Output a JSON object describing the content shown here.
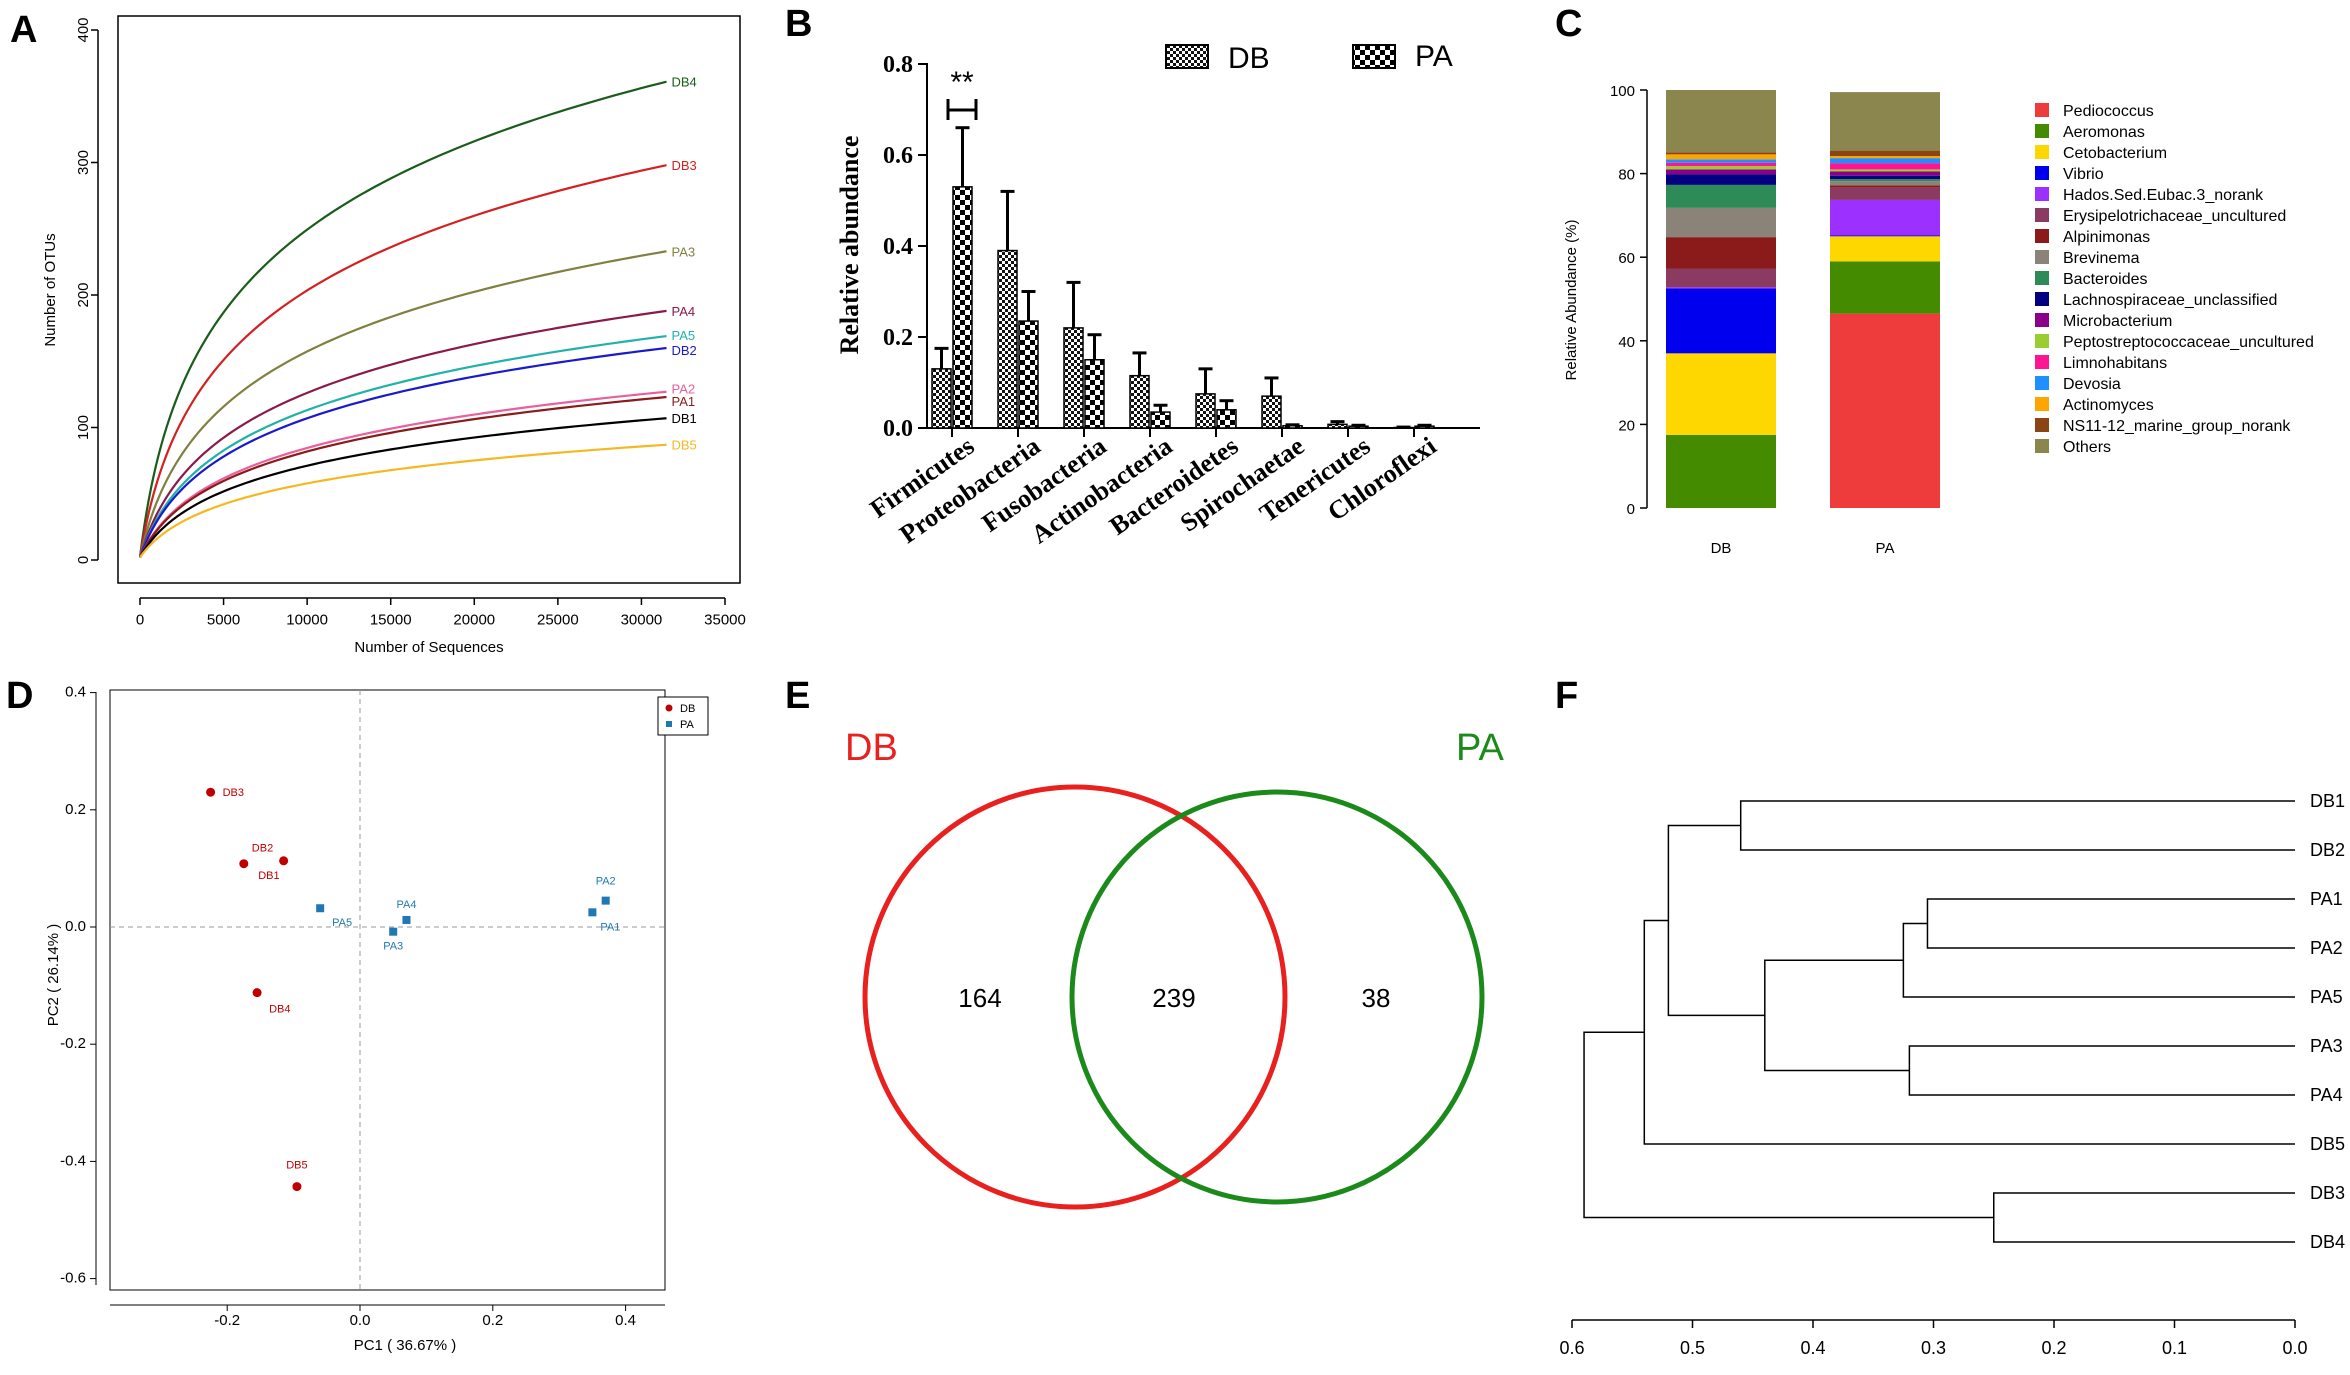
{
  "panels": {
    "a": "A",
    "b": "B",
    "c": "C",
    "d": "D",
    "e": "E",
    "f": "F"
  },
  "chart_data": [
    {
      "id": "A",
      "type": "line",
      "title": "",
      "xlabel": "Number of Sequences",
      "ylabel": "Number of OTUs",
      "xlim": [
        0,
        35000
      ],
      "ylim": [
        0,
        400
      ],
      "xticks": [
        "0",
        "5000",
        "10000",
        "15000",
        "20000",
        "25000",
        "30000",
        "35000"
      ],
      "yticks": [
        "0",
        "100",
        "200",
        "300",
        "400"
      ],
      "series": [
        {
          "name": "DB4",
          "color": "#1a5c1a",
          "start": 2,
          "end": 361
        },
        {
          "name": "DB3",
          "color": "#d42020",
          "start": 2,
          "end": 298
        },
        {
          "name": "PA3",
          "color": "#808040",
          "start": 2,
          "end": 233
        },
        {
          "name": "PA4",
          "color": "#8b1a4b",
          "start": 2,
          "end": 188
        },
        {
          "name": "PA5",
          "color": "#20b2aa",
          "start": 2,
          "end": 169
        },
        {
          "name": "DB2",
          "color": "#1a1acd",
          "start": 2,
          "end": 160
        },
        {
          "name": "PA2",
          "color": "#e8609c",
          "start": 2,
          "end": 127
        },
        {
          "name": "PA1",
          "color": "#8b1a1a",
          "start": 2,
          "end": 123
        },
        {
          "name": "DB1",
          "color": "#000000",
          "start": 2,
          "end": 107
        },
        {
          "name": "DB5",
          "color": "#f5b820",
          "start": 2,
          "end": 87
        }
      ]
    },
    {
      "id": "B",
      "type": "bar",
      "xlabel": "",
      "ylabel": "Relative abundance",
      "ylim": [
        0,
        0.8
      ],
      "yticks": [
        "0.0",
        "0.2",
        "0.4",
        "0.6",
        "0.8"
      ],
      "categories": [
        "Firmicutes",
        "Proteobacteria",
        "Fusobacteria",
        "Actinobacteria",
        "Bacteroidetes",
        "Spirochaetae",
        "Tenericutes",
        "Chloroflexi"
      ],
      "series": [
        {
          "name": "DB",
          "values": [
            0.13,
            0.39,
            0.22,
            0.115,
            0.075,
            0.07,
            0.008,
            0.001
          ],
          "errors": [
            0.045,
            0.13,
            0.1,
            0.05,
            0.055,
            0.04,
            0.006,
            0.001
          ]
        },
        {
          "name": "PA",
          "values": [
            0.53,
            0.235,
            0.15,
            0.035,
            0.04,
            0.005,
            0.004,
            0.004
          ],
          "errors": [
            0.13,
            0.065,
            0.055,
            0.015,
            0.02,
            0.002,
            0.002,
            0.002
          ]
        }
      ],
      "annotation": "**"
    },
    {
      "id": "C",
      "type": "bar",
      "stacked": true,
      "ylabel": "Relative Abundance (%)",
      "ylim": [
        0,
        100
      ],
      "yticks": [
        "0",
        "20",
        "40",
        "60",
        "80",
        "100"
      ],
      "categories": [
        "DB",
        "PA"
      ],
      "series": [
        {
          "name": "Pediococcus",
          "color": "#ee3b3b",
          "values": [
            0,
            46.5
          ]
        },
        {
          "name": "Aeromonas",
          "color": "#458b00",
          "values": [
            17.5,
            12.5
          ]
        },
        {
          "name": "Cetobacterium",
          "color": "#ffd700",
          "values": [
            19.5,
            6.0
          ]
        },
        {
          "name": "Vibrio",
          "color": "#0000ee",
          "values": [
            15.5,
            0.2
          ]
        },
        {
          "name": "Hados.Sed.Eubac.3_norank",
          "color": "#9b30ff",
          "values": [
            0.3,
            8.5
          ]
        },
        {
          "name": "Erysipelotrichaceae_uncultured",
          "color": "#8b3a62",
          "values": [
            4.5,
            3.0
          ]
        },
        {
          "name": "Alpinimonas",
          "color": "#8b1a1a",
          "values": [
            7.5,
            0.5
          ]
        },
        {
          "name": "Brevinema",
          "color": "#8b8378",
          "values": [
            7.0,
            1.0
          ]
        },
        {
          "name": "Bacteroides",
          "color": "#2e8b57",
          "values": [
            5.5,
            0.5
          ]
        },
        {
          "name": "Lachnospiraceae_unclassified",
          "color": "#000080",
          "values": [
            2.5,
            0.8
          ]
        },
        {
          "name": "Microbacterium",
          "color": "#8b008b",
          "values": [
            1.2,
            1.0
          ]
        },
        {
          "name": "Peptostreptococcaceae_uncultured",
          "color": "#9acd32",
          "values": [
            0.8,
            0.5
          ]
        },
        {
          "name": "Limnohabitans",
          "color": "#ff1493",
          "values": [
            0.8,
            1.5
          ]
        },
        {
          "name": "Devosia",
          "color": "#1e90ff",
          "values": [
            0.8,
            1.2
          ]
        },
        {
          "name": "Actinomyces",
          "color": "#ffa500",
          "values": [
            1.2,
            0.5
          ]
        },
        {
          "name": "NS11-12_marine_group_norank",
          "color": "#8b4513",
          "values": [
            0.5,
            1.3
          ]
        },
        {
          "name": "Others",
          "color": "#8b864e",
          "values": [
            14.9,
            14.0
          ]
        }
      ]
    },
    {
      "id": "D",
      "type": "scatter",
      "xlabel": "PC1 ( 36.67% )",
      "ylabel": "PC2 ( 26.14% )",
      "xlim": [
        -0.37,
        0.47
      ],
      "ylim": [
        -0.62,
        0.41
      ],
      "xticks": [
        "-0.2",
        "0.0",
        "0.2",
        "0.4"
      ],
      "yticks": [
        "-0.6",
        "-0.4",
        "-0.2",
        "0.0",
        "0.2",
        "0.4"
      ],
      "legend": [
        {
          "name": "DB",
          "color": "#c00000"
        },
        {
          "name": "PA",
          "color": "#1f78b4"
        }
      ],
      "points": [
        {
          "label": "DB3",
          "group": "DB",
          "x": -0.225,
          "y": 0.23
        },
        {
          "label": "DB2",
          "group": "DB",
          "x": -0.175,
          "y": 0.108
        },
        {
          "label": "DB1",
          "group": "DB",
          "x": -0.115,
          "y": 0.113
        },
        {
          "label": "DB4",
          "group": "DB",
          "x": -0.155,
          "y": -0.112
        },
        {
          "label": "DB5",
          "group": "DB",
          "x": -0.095,
          "y": -0.443
        },
        {
          "label": "PA5",
          "group": "PA",
          "x": -0.06,
          "y": 0.032
        },
        {
          "label": "PA4",
          "group": "PA",
          "x": 0.07,
          "y": 0.012
        },
        {
          "label": "PA3",
          "group": "PA",
          "x": 0.05,
          "y": -0.008
        },
        {
          "label": "PA2",
          "group": "PA",
          "x": 0.37,
          "y": 0.045
        },
        {
          "label": "PA1",
          "group": "PA",
          "x": 0.35,
          "y": 0.025
        }
      ]
    },
    {
      "id": "E",
      "type": "venn",
      "sets": [
        {
          "name": "DB",
          "color": "#e8201e"
        },
        {
          "name": "PA",
          "color": "#1b8a1b"
        }
      ],
      "counts": {
        "DB_only": "164",
        "shared": "239",
        "PA_only": "38"
      }
    },
    {
      "id": "F",
      "type": "dendrogram",
      "xlim": [
        0.6,
        0.0
      ],
      "xticks": [
        "0.6",
        "0.5",
        "0.4",
        "0.3",
        "0.2",
        "0.1",
        "0.0"
      ],
      "leaves": [
        "DB1",
        "DB2",
        "PA1",
        "PA2",
        "PA5",
        "PA3",
        "PA4",
        "DB5",
        "DB3",
        "DB4"
      ],
      "merges": [
        {
          "a": "DB1",
          "b": "DB2",
          "height": 0.46
        },
        {
          "a": "PA1",
          "b": "PA2",
          "height": 0.305
        },
        {
          "a": "PA1+PA2",
          "b": "PA5",
          "height": 0.325
        },
        {
          "a": "PA3",
          "b": "PA4",
          "height": 0.32
        },
        {
          "a": "PA1+PA2+PA5",
          "b": "PA3+PA4",
          "height": 0.44
        },
        {
          "a": "DB1+DB2",
          "b": "PA",
          "height": 0.52
        },
        {
          "a": "DB1+DB2+PA",
          "b": "DB5",
          "height": 0.54
        },
        {
          "a": "DB3",
          "b": "DB4",
          "height": 0.25
        },
        {
          "a": "ALL_A",
          "b": "DB3+DB4",
          "height": 0.59
        }
      ]
    }
  ]
}
